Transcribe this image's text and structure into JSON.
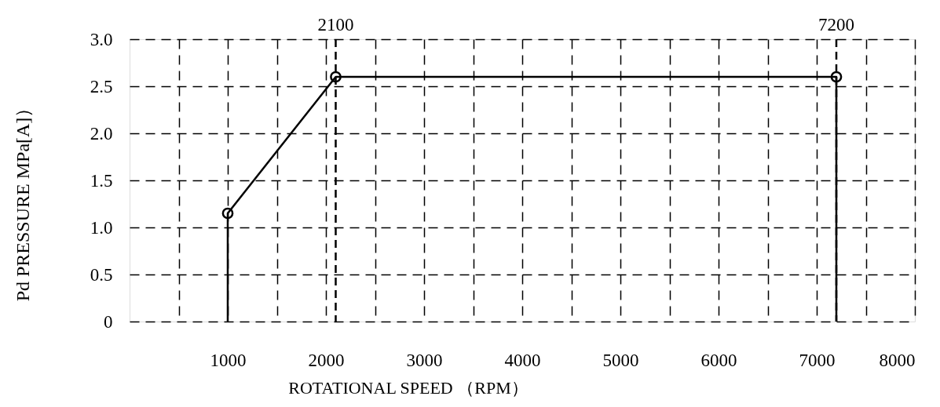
{
  "chart_data": {
    "type": "line",
    "xlabel": "ROTATIONAL SPEED        （RPM）",
    "ylabel": "Pd PRESSURE            MPa[A]）",
    "xlim": [
      0,
      8000
    ],
    "ylim": [
      0,
      3.0
    ],
    "xticks": [
      {
        "value": 500,
        "label": null
      },
      1000,
      {
        "value": 1500,
        "label": null
      },
      2000,
      {
        "value": 2500,
        "label": null
      },
      3000,
      {
        "value": 3500,
        "label": null
      },
      4000,
      {
        "value": 4500,
        "label": null
      },
      5000,
      {
        "value": 5500,
        "label": null
      },
      6000,
      {
        "value": 6500,
        "label": null
      },
      7000,
      {
        "value": 7500,
        "label": null
      },
      8000
    ],
    "yticks": [
      0,
      0.5,
      {
        "value": 1,
        "label": "1.0"
      },
      1.5,
      {
        "value": 2,
        "label": "2.0"
      },
      2.5,
      {
        "value": 3,
        "label": "3.0"
      }
    ],
    "grid": true,
    "line_style": "solid",
    "series": [
      {
        "color": "#000000",
        "x": [
          1000,
          1000,
          2100,
          7200,
          7200
        ],
        "values": [
          0,
          1.15,
          2.6,
          2.6,
          0
        ],
        "marker": "none"
      },
      {
        "type": "scatter",
        "color": "#000000",
        "x": [
          1000,
          2100,
          7200
        ],
        "values": [
          1.15,
          2.6,
          2.6
        ],
        "marker": "circle"
      }
    ],
    "ref_lines": [
      {
        "axis": "x",
        "value": 2100,
        "label": "2100",
        "line_style": "dashed",
        "color": "#000000"
      },
      {
        "axis": "x",
        "value": 7200,
        "label": "7200",
        "line_style": "dashed",
        "color": "#000000"
      }
    ]
  }
}
